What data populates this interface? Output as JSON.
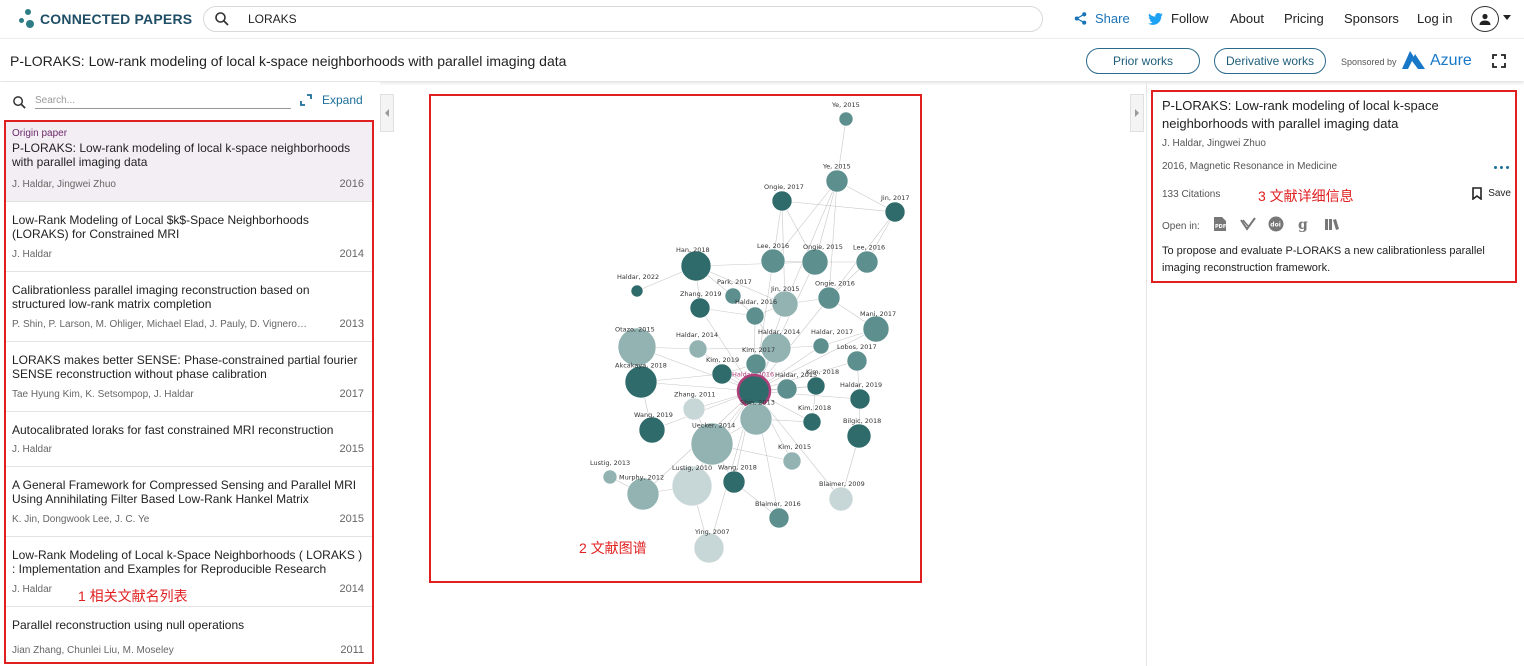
{
  "app": {
    "brand": "CONNECTED PAPERS",
    "search_value": "LORAKS",
    "nav": {
      "share": "Share",
      "follow": "Follow",
      "about": "About",
      "pricing": "Pricing",
      "sponsors": "Sponsors",
      "login": "Log in"
    }
  },
  "titlebar": {
    "title": "P-LORAKS: Low-rank modeling of local k-space neighborhoods with parallel imaging data",
    "prior_works": "Prior works",
    "derivative_works": "Derivative works",
    "sponsored_by": "Sponsored by",
    "sponsor_name": "Azure"
  },
  "left": {
    "search_placeholder": "Search...",
    "expand": "Expand",
    "origin_label": "Origin paper",
    "annotation": "1 相关文献名列表",
    "papers": [
      {
        "title": "P-LORAKS: Low-rank modeling of local k-space neighborhoods with parallel imaging data",
        "authors": "J. Haldar, Jingwei Zhuo",
        "year": "2016"
      },
      {
        "title": "Low-Rank Modeling of Local $k$-Space Neighborhoods (LORAKS) for Constrained MRI",
        "authors": "J. Haldar",
        "year": "2014"
      },
      {
        "title": "Calibrationless parallel imaging reconstruction based on structured low-rank matrix completion",
        "authors": "P. Shin, P. Larson, M. Ohliger, Michael Elad, J. Pauly, D. Vigneron, M....",
        "year": "2013"
      },
      {
        "title": "LORAKS makes better SENSE: Phase-constrained partial fourier SENSE reconstruction without phase calibration",
        "authors": "Tae Hyung Kim, K. Setsompop, J. Haldar",
        "year": "2017"
      },
      {
        "title": "Autocalibrated loraks for fast constrained MRI reconstruction",
        "authors": "J. Haldar",
        "year": "2015"
      },
      {
        "title": "A General Framework for Compressed Sensing and Parallel MRI Using Annihilating Filter Based Low-Rank Hankel Matrix",
        "authors": "K. Jin, Dongwook Lee, J. C. Ye",
        "year": "2015"
      },
      {
        "title": "Low-Rank Modeling of Local k-Space Neighborhoods ( LORAKS ) : Implementation and Examples for Reproducible Research",
        "authors": "J. Haldar",
        "year": "2014"
      },
      {
        "title": "Parallel reconstruction using null operations",
        "authors": "Jian Zhang, Chunlei Liu, M. Moseley",
        "year": "2011"
      }
    ]
  },
  "graph": {
    "annotation": "2 文献图谱",
    "colors": {
      "dark": "#2f6b6b",
      "mid": "#5e8f8f",
      "light": "#93b3b3",
      "pale": "#c7d6d6",
      "origin": "#b0407a",
      "edge": "#9a9a9a"
    },
    "nodes": [
      {
        "label": "Ye, 2015",
        "shade": "mid"
      },
      {
        "label": "Ye, 2015",
        "shade": "mid"
      },
      {
        "label": "Ongie, 2017",
        "shade": "dark"
      },
      {
        "label": "Jin, 2017",
        "shade": "dark"
      },
      {
        "label": "Haldar, 2022",
        "shade": "dark"
      },
      {
        "label": "Han, 2018",
        "shade": "dark"
      },
      {
        "label": "Lee, 2016",
        "shade": "mid"
      },
      {
        "label": "Ongie, 2015",
        "shade": "mid"
      },
      {
        "label": "Lee, 2016",
        "shade": "mid"
      },
      {
        "label": "Park, 2017",
        "shade": "mid"
      },
      {
        "label": "Jin, 2015",
        "shade": "light"
      },
      {
        "label": "Ongie, 2016",
        "shade": "mid"
      },
      {
        "label": "Zhang, 2019",
        "shade": "dark"
      },
      {
        "label": "Haldar, 2016",
        "shade": "mid"
      },
      {
        "label": "Mani, 2017",
        "shade": "mid"
      },
      {
        "label": "Otazo, 2015",
        "shade": "light"
      },
      {
        "label": "Haldar, 2014",
        "shade": "light"
      },
      {
        "label": "Haldar, 2014",
        "shade": "light"
      },
      {
        "label": "Haldar, 2017",
        "shade": "mid"
      },
      {
        "label": "Kim, 2017",
        "shade": "mid"
      },
      {
        "label": "Lobos, 2017",
        "shade": "mid"
      },
      {
        "label": "Kim, 2019",
        "shade": "dark"
      },
      {
        "label": "Akcakaya, 2018",
        "shade": "dark"
      },
      {
        "label": "Haldar, 2016",
        "shade": "origin"
      },
      {
        "label": "Haldar, 2015",
        "shade": "mid"
      },
      {
        "label": "Kim, 2018",
        "shade": "dark"
      },
      {
        "label": "Haldar, 2019",
        "shade": "dark"
      },
      {
        "label": "Zhang, 2011",
        "shade": "pale"
      },
      {
        "label": "Shin, 2013",
        "shade": "light"
      },
      {
        "label": "Kim, 2018",
        "shade": "dark"
      },
      {
        "label": "Wang, 2019",
        "shade": "dark"
      },
      {
        "label": "Uecker, 2014",
        "shade": "light"
      },
      {
        "label": "Bilgic, 2018",
        "shade": "dark"
      },
      {
        "label": "Kim, 2015",
        "shade": "light"
      },
      {
        "label": "Lustig, 2013",
        "shade": "light"
      },
      {
        "label": "Lustig, 2010",
        "shade": "pale"
      },
      {
        "label": "Wang, 2018",
        "shade": "dark"
      },
      {
        "label": "Murphy, 2012",
        "shade": "light"
      },
      {
        "label": "Blaimer, 2009",
        "shade": "pale"
      },
      {
        "label": "Blaimer, 2016",
        "shade": "mid"
      },
      {
        "label": "Ying, 2007",
        "shade": "pale"
      }
    ]
  },
  "detail": {
    "title": "P-LORAKS: Low-rank modeling of local k-space neighborhoods with parallel imaging data",
    "authors": "J. Haldar, Jingwei Zhuo",
    "venue": "2016, Magnetic Resonance in Medicine",
    "citations": "133 Citations",
    "annotation": "3 文献详细信息",
    "save": "Save",
    "open_in": "Open in:",
    "open_in_icons": [
      "pdf-icon",
      "semantic-scholar-icon",
      "doi-icon",
      "google-scholar-icon",
      "library-icon"
    ],
    "abstract": "To propose and evaluate P-LORAKS a new calibrationless parallel imaging reconstruction framework."
  }
}
